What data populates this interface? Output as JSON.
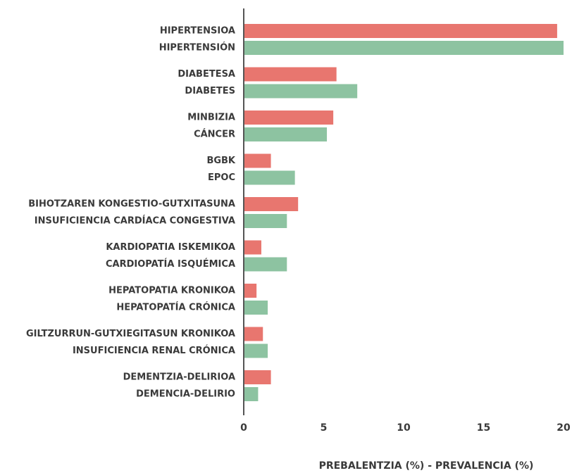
{
  "chart_data": {
    "type": "bar",
    "orientation": "horizontal",
    "x_label": "PREBALENTZIA (%) - PREVALENCIA (%)",
    "xlim": [
      0,
      20
    ],
    "xticks": [
      0,
      5,
      10,
      15,
      20
    ],
    "series": [
      {
        "color": "#e8766f",
        "labels": [
          "HIPERTENSIOA",
          "DIABETESA",
          "MINBIZIA",
          "BGBK",
          "BIHOTZAREN KONGESTIO-GUTXITASUNA",
          "KARDIOPATIA ISKEMIKOA",
          "HEPATOPATIA KRONIKOA",
          "GILTZURRUN-GUTXIEGITASUN KRONIKOA",
          "DEMENTZIA-DELIRIOA"
        ],
        "values": [
          19.6,
          5.8,
          5.6,
          1.7,
          3.4,
          1.1,
          0.8,
          1.2,
          1.7
        ]
      },
      {
        "color": "#8dc3a1",
        "labels": [
          "HIPERTENSIÓN",
          "DIABETES",
          "CÁNCER",
          "EPOC",
          "INSUFICIENCIA CARDÍACA CONGESTIVA",
          "CARDIOPATÍA ISQUÉMICA",
          "HEPATOPATÍA CRÓNICA",
          "INSUFICIENCIA RENAL CRÓNICA",
          "DEMENCIA-DELIRIO"
        ],
        "values": [
          20.0,
          7.1,
          5.2,
          3.2,
          2.7,
          2.7,
          1.5,
          1.5,
          0.9
        ]
      }
    ]
  }
}
